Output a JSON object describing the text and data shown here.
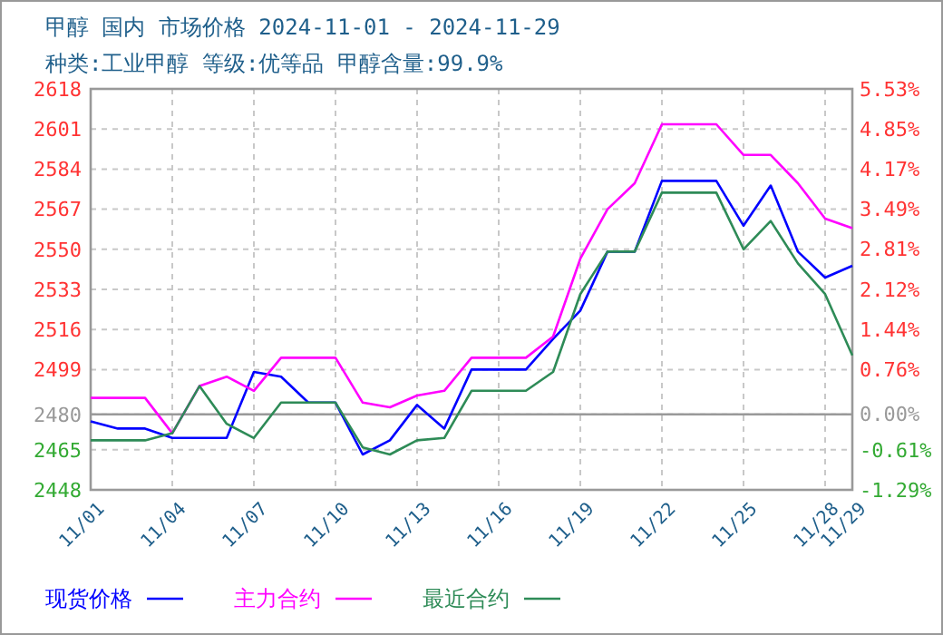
{
  "chart_data": {
    "type": "line",
    "title": "甲醇 国内 市场价格 2024-11-01 - 2024-11-29",
    "subtitle": "种类:工业甲醇 等级:优等品 甲醇含量:99.9%",
    "x": [
      "2024-11-01",
      "2024-11-02",
      "2024-11-03",
      "2024-11-04",
      "2024-11-05",
      "2024-11-06",
      "2024-11-07",
      "2024-11-08",
      "2024-11-09",
      "2024-11-10",
      "2024-11-11",
      "2024-11-12",
      "2024-11-13",
      "2024-11-14",
      "2024-11-15",
      "2024-11-16",
      "2024-11-17",
      "2024-11-18",
      "2024-11-19",
      "2024-11-20",
      "2024-11-21",
      "2024-11-22",
      "2024-11-23",
      "2024-11-24",
      "2024-11-25",
      "2024-11-26",
      "2024-11-27",
      "2024-11-28",
      "2024-11-29"
    ],
    "series": [
      {
        "name": "现货价格",
        "color": "#0000ff",
        "values": [
          2477,
          2474,
          2474,
          2470,
          2470,
          2470,
          2498,
          2496,
          2485,
          2485,
          2463,
          2469,
          2484,
          2474,
          2499,
          2499,
          2499,
          2512,
          2524,
          2549,
          2549,
          2579,
          2579,
          2579,
          2560,
          2577,
          2549,
          2538,
          2543
        ]
      },
      {
        "name": "主力合约",
        "color": "#ff00ff",
        "values": [
          2487,
          2487,
          2487,
          2472,
          2492,
          2496,
          2490,
          2504,
          2504,
          2504,
          2485,
          2483,
          2488,
          2490,
          2504,
          2504,
          2504,
          2513,
          2546,
          2567,
          2578,
          2603,
          2603,
          2603,
          2590,
          2590,
          2578,
          2563,
          2559
        ]
      },
      {
        "name": "最近合约",
        "color": "#2e8b57",
        "values": [
          2469,
          2469,
          2469,
          2472,
          2492,
          2476,
          2470,
          2485,
          2485,
          2485,
          2466,
          2463,
          2469,
          2470,
          2490,
          2490,
          2490,
          2498,
          2531,
          2549,
          2549,
          2574,
          2574,
          2574,
          2550,
          2562,
          2544,
          2531,
          2505
        ]
      }
    ],
    "xlim": [
      "2024-11-01",
      "2024-11-29"
    ],
    "xticks": [
      {
        "value": "2024-11-01",
        "label": "11/01"
      },
      {
        "value": "2024-11-04",
        "label": "11/04"
      },
      {
        "value": "2024-11-07",
        "label": "11/07"
      },
      {
        "value": "2024-11-10",
        "label": "11/10"
      },
      {
        "value": "2024-11-13",
        "label": "11/13"
      },
      {
        "value": "2024-11-16",
        "label": "11/16"
      },
      {
        "value": "2024-11-19",
        "label": "11/19"
      },
      {
        "value": "2024-11-22",
        "label": "11/22"
      },
      {
        "value": "2024-11-25",
        "label": "11/25"
      },
      {
        "value": "2024-11-28",
        "label": "11/28"
      },
      {
        "value": "2024-11-29",
        "label": "11/29"
      }
    ],
    "ylim": [
      2448,
      2618
    ],
    "yticks": [
      2448,
      2465,
      2480,
      2499,
      2516,
      2533,
      2550,
      2567,
      2584,
      2601,
      2618
    ],
    "y2lim": [
      -1.29,
      5.53
    ],
    "y2ticks": [
      {
        "value": -1.29,
        "label": "-1.29%"
      },
      {
        "value": -0.61,
        "label": "-0.61%"
      },
      {
        "value": 0,
        "label": "0.00%"
      },
      {
        "value": 0.76,
        "label": "0.76%"
      },
      {
        "value": 1.44,
        "label": "1.44%"
      },
      {
        "value": 2.12,
        "label": "2.12%"
      },
      {
        "value": 2.81,
        "label": "2.81%"
      },
      {
        "value": 3.49,
        "label": "3.49%"
      },
      {
        "value": 4.17,
        "label": "4.17%"
      },
      {
        "value": 4.85,
        "label": "4.85%"
      },
      {
        "value": 5.53,
        "label": "5.53%"
      }
    ],
    "ref_lines": [
      {
        "axis": "y",
        "value": 2480,
        "color": "#999999"
      }
    ],
    "grid": true,
    "legend": "bottom",
    "marker": "none",
    "line_style": "solid"
  }
}
